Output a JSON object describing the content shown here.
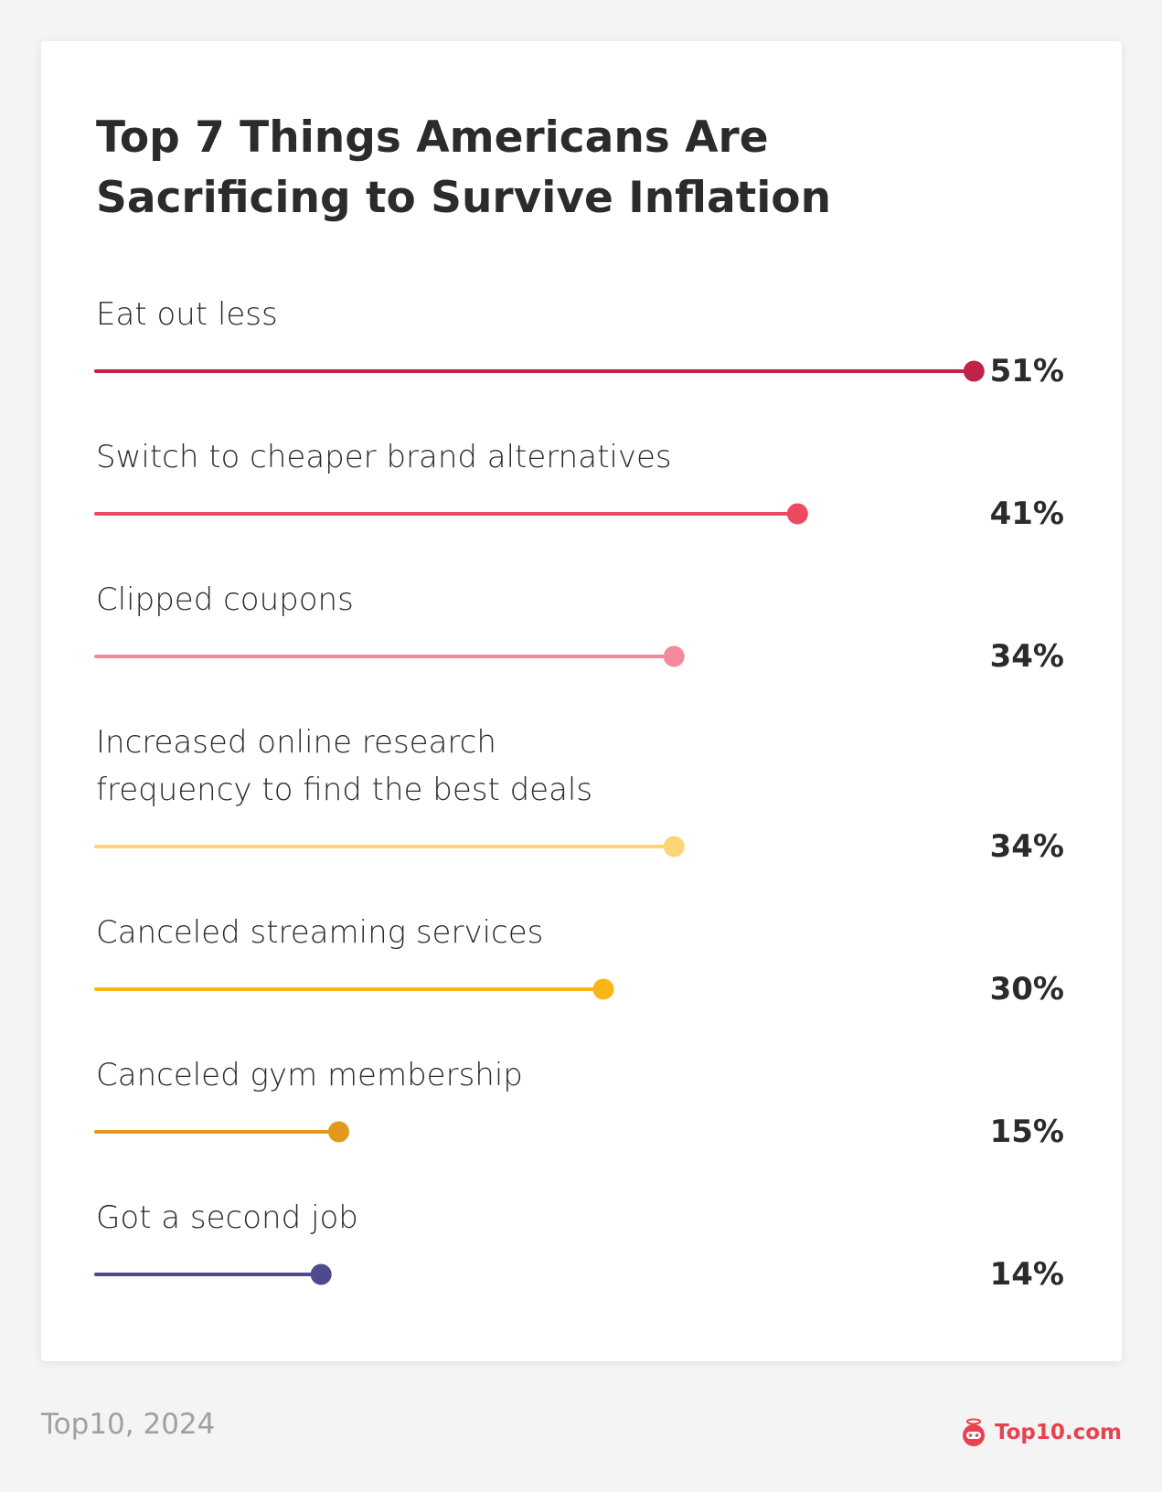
{
  "chart_data": {
    "type": "lollipop",
    "title": "Top 7 Things Americans Are Sacrificing to Survive Inflation",
    "categories": [
      "Eat out less",
      "Switch to cheaper brand alternatives",
      "Clipped coupons",
      "Increased online research\nfrequency to find the best deals",
      "Canceled streaming services",
      "Canceled gym membership",
      "Got a second job"
    ],
    "values": [
      51,
      41,
      34,
      34,
      30,
      15,
      14
    ],
    "value_labels": [
      "51%",
      "41%",
      "34%",
      "34%",
      "30%",
      "15%",
      "14%"
    ],
    "colors": [
      "#c0224a",
      "#ee4a5f",
      "#f48a9a",
      "#fbd677",
      "#fcb514",
      "#e0981f",
      "#4e4b8c"
    ]
  },
  "footer": {
    "source": "Top10, 2024",
    "logo": "Top10.com"
  }
}
